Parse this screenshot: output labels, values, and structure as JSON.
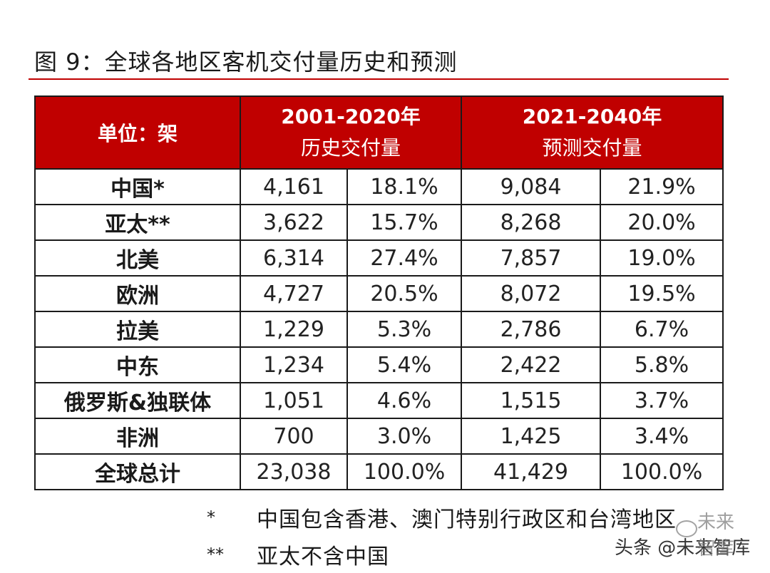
{
  "title": "图 9：全球各地区客机交付量历史和预测",
  "table": {
    "unit_label": "单位：架",
    "period1_line1": "2001-2020年",
    "period1_line2": "历史交付量",
    "period2_line1": "2021-2040年",
    "period2_line2": "预测交付量",
    "rows": [
      {
        "region": "中国*",
        "h_count": "4,161",
        "h_pct": "18.1%",
        "f_count": "9,084",
        "f_pct": "21.9%"
      },
      {
        "region": "亚太**",
        "h_count": "3,622",
        "h_pct": "15.7%",
        "f_count": "8,268",
        "f_pct": "20.0%"
      },
      {
        "region": "北美",
        "h_count": "6,314",
        "h_pct": "27.4%",
        "f_count": "7,857",
        "f_pct": "19.0%"
      },
      {
        "region": "欧洲",
        "h_count": "4,727",
        "h_pct": "20.5%",
        "f_count": "8,072",
        "f_pct": "19.5%"
      },
      {
        "region": "拉美",
        "h_count": "1,229",
        "h_pct": "5.3%",
        "f_count": "2,786",
        "f_pct": "6.7%"
      },
      {
        "region": "中东",
        "h_count": "1,234",
        "h_pct": "5.4%",
        "f_count": "2,422",
        "f_pct": "5.8%"
      },
      {
        "region": "俄罗斯&独联体",
        "h_count": "1,051",
        "h_pct": "4.6%",
        "f_count": "1,515",
        "f_pct": "3.7%"
      },
      {
        "region": "非洲",
        "h_count": "700",
        "h_pct": "3.0%",
        "f_count": "1,425",
        "f_pct": "3.4%"
      },
      {
        "region": "全球总计",
        "h_count": "23,038",
        "h_pct": "100.0%",
        "f_count": "41,429",
        "f_pct": "100.0%"
      }
    ]
  },
  "footnotes": [
    {
      "mark": "*",
      "text": "中国包含香港、澳门特别行政区和台湾地区"
    },
    {
      "mark": "**",
      "text": "亚太不含中国"
    }
  ],
  "watermark": {
    "top": "未来智库",
    "bottom": "头条 @未来智库"
  },
  "colors": {
    "header_bg": "#c00000",
    "rule": "#c00000"
  }
}
